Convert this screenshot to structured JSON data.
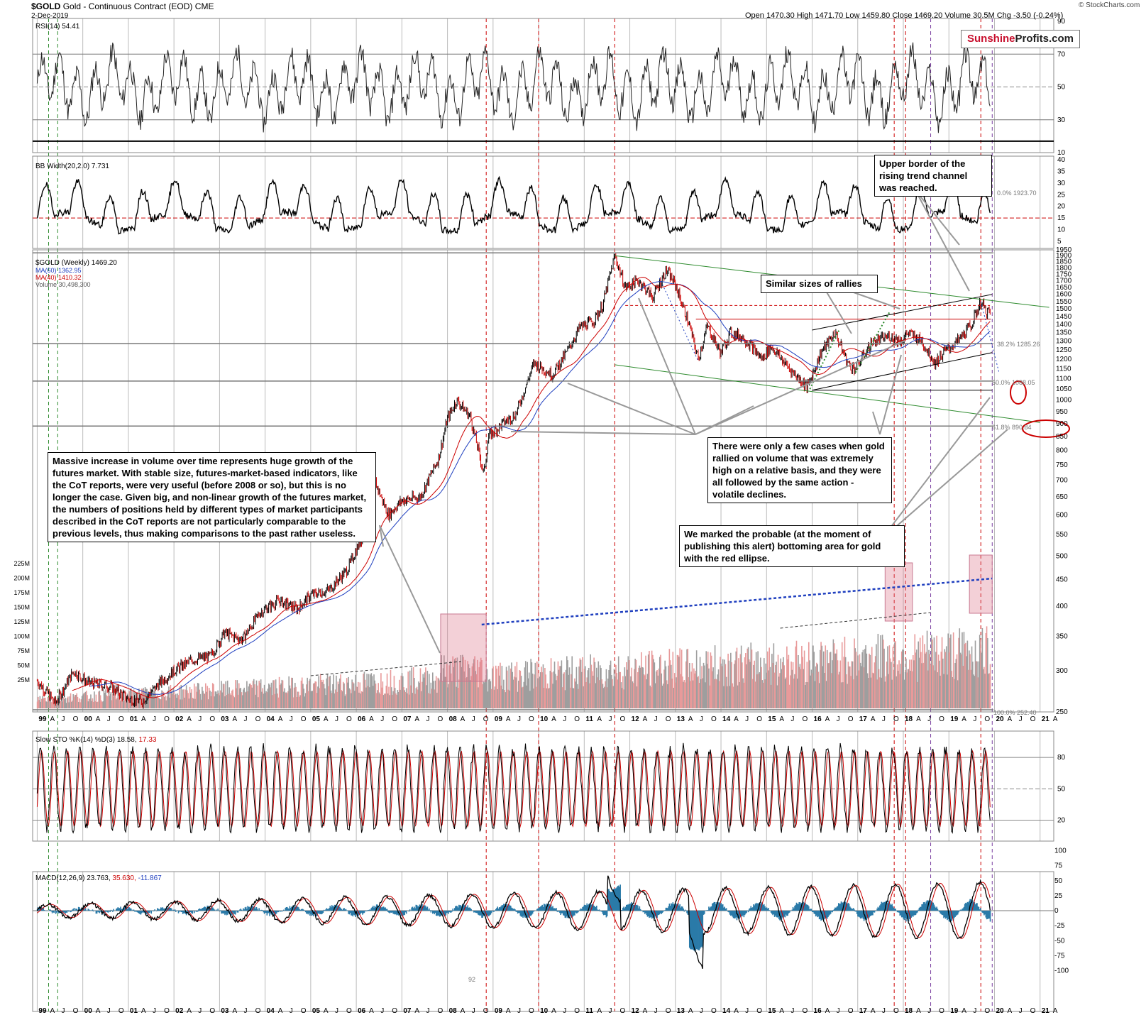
{
  "header": {
    "symbol": "$GOLD",
    "name": "Gold - Continuous Contract (EOD)",
    "exchange": "CME",
    "date": "2-Dec-2019",
    "ohlc": "Open 1470.30  High 1471.70  Low 1459.80  Close 1469.20  Volume 30.5M  Chg -3.50 (-0.24%)",
    "watermark": "© StockCharts.com"
  },
  "logo": {
    "part1": "Sunshine",
    "part2": "Profits.com"
  },
  "indicators": {
    "rsi": "RSI(14) 54.41",
    "bbw": "BB Width(20,2.0) 7.731",
    "price": "$GOLD (Weekly) 1469.20",
    "ma60": "MA(60) 1362.95",
    "ma40": "MA(40) 1410.32",
    "volume": "Volume 30,498,300",
    "sto": "Slow STO %K(14) %D(3) 18.58,",
    "sto_d": "17.33",
    "macd": "MACD(12,26,9) 23.763,",
    "macd_sig": "35.630,",
    "macd_hist": "-11.867"
  },
  "fib": {
    "f0": "0.0% 1923.70",
    "f382": "38.2% 1285.26",
    "f50": "50.0% 1088.05",
    "f618": "61.8% 890.84",
    "f100": "100.0% 252.40"
  },
  "notes": {
    "n1": "Upper border of the rising trend channel was reached.",
    "n2": "Similar sizes of rallies",
    "n3": "There were only a few cases when gold rallied on volume that was extremely high on a relative basis, and they were all followed by the same action - volatile declines.",
    "n4": "We marked the probable (at the moment of publishing this alert) bottoming area for gold with the red ellipse.",
    "n5": "Massive increase in volume over time represents huge growth of the futures market. With stable size, futures-market-based indicators, like the CoT reports, were very useful (before 2008 or so), but this is no longer the case. Given big, and non-linear growth of the futures market, the numbers of positions held by different types of market participants described in the CoT reports are not particularly comparable to the previous levels, thus making comparisons to the past rather useless."
  },
  "axis_labels": {
    "rsi": [
      "90",
      "70",
      "50",
      "30",
      "10"
    ],
    "bbw": [
      "40",
      "35",
      "30",
      "25",
      "20",
      "15",
      "10",
      "5"
    ],
    "price": [
      "1950",
      "1900",
      "1850",
      "1800",
      "1750",
      "1700",
      "1650",
      "1600",
      "1550",
      "1500",
      "1450",
      "1400",
      "1350",
      "1300",
      "1250",
      "1200",
      "1150",
      "1100",
      "1050",
      "1000",
      "950",
      "900",
      "850",
      "800",
      "750",
      "700",
      "650",
      "600",
      "550",
      "500",
      "450",
      "400",
      "350",
      "300",
      "250"
    ],
    "volume": [
      "225M",
      "200M",
      "175M",
      "150M",
      "125M",
      "100M",
      "75M",
      "50M",
      "25M"
    ],
    "sto": [
      "80",
      "50",
      "20"
    ],
    "macd": [
      "100",
      "75",
      "50",
      "25",
      "0",
      "-25",
      "-50",
      "-75",
      "-100"
    ],
    "macd_note": "92"
  },
  "colors": {
    "price_up": "#000000",
    "price_down": "#cc0000",
    "ma60": "#1f3fbf",
    "ma40": "#cc0000",
    "rsi_fill": "#4a7a4a",
    "vol_up": "#9e9e9e",
    "vol_down": "#e89a9a",
    "macd_hist": "#2a7aa8",
    "trend": "#2e8b2e"
  },
  "chart_data": {
    "type": "line",
    "title": "$GOLD Gold - Continuous Contract (EOD) CME",
    "x_ticks": [
      "99",
      "A",
      "J",
      "O",
      "00",
      "A",
      "J",
      "O",
      "01",
      "A",
      "J",
      "O",
      "02",
      "A",
      "J",
      "O",
      "03",
      "A",
      "J",
      "O",
      "04",
      "A",
      "J",
      "O",
      "05",
      "A",
      "J",
      "O",
      "06",
      "A",
      "J",
      "O",
      "07",
      "A",
      "J",
      "O",
      "08",
      "A",
      "J",
      "O",
      "09",
      "A",
      "J",
      "O",
      "10",
      "A",
      "J",
      "O",
      "11",
      "A",
      "J",
      "O",
      "12",
      "A",
      "J",
      "O",
      "13",
      "A",
      "J",
      "O",
      "14",
      "A",
      "J",
      "O",
      "15",
      "A",
      "J",
      "O",
      "16",
      "A",
      "J",
      "O",
      "17",
      "A",
      "J",
      "O",
      "18",
      "A",
      "J",
      "O",
      "19",
      "A",
      "J",
      "O",
      "20",
      "A",
      "J",
      "O",
      "21",
      "A"
    ],
    "series": [
      {
        "name": "$GOLD (Weekly)",
        "x": [
          1999.0,
          1999.4,
          1999.8,
          2000.1,
          2000.6,
          2001.0,
          2001.3,
          2001.7,
          2002.0,
          2002.4,
          2002.8,
          2003.1,
          2003.5,
          2003.9,
          2004.3,
          2004.7,
          2005.0,
          2005.4,
          2005.8,
          2006.2,
          2006.4,
          2006.7,
          2007.0,
          2007.4,
          2007.8,
          2008.0,
          2008.2,
          2008.5,
          2008.8,
          2008.9,
          2009.2,
          2009.5,
          2009.9,
          2010.3,
          2010.6,
          2010.9,
          2011.2,
          2011.4,
          2011.67,
          2011.9,
          2012.2,
          2012.5,
          2012.8,
          2013.0,
          2013.3,
          2013.5,
          2013.7,
          2014.0,
          2014.2,
          2014.5,
          2014.9,
          2015.1,
          2015.5,
          2015.9,
          2016.2,
          2016.5,
          2016.8,
          2016.95,
          2017.3,
          2017.7,
          2017.95,
          2018.1,
          2018.4,
          2018.7,
          2018.9,
          2019.2,
          2019.5,
          2019.7,
          2019.8,
          2019.92
        ],
        "y": [
          287,
          260,
          300,
          285,
          280,
          265,
          262,
          285,
          300,
          315,
          320,
          355,
          345,
          390,
          410,
          395,
          420,
          430,
          470,
          560,
          700,
          600,
          640,
          650,
          770,
          920,
          1000,
          930,
          720,
          850,
          900,
          940,
          1180,
          1120,
          1230,
          1380,
          1420,
          1520,
          1900,
          1650,
          1700,
          1580,
          1780,
          1670,
          1400,
          1200,
          1390,
          1230,
          1350,
          1320,
          1200,
          1270,
          1150,
          1060,
          1240,
          1350,
          1170,
          1150,
          1290,
          1330,
          1300,
          1350,
          1300,
          1180,
          1240,
          1300,
          1400,
          1550,
          1490,
          1469
        ]
      },
      {
        "name": "MA(60)",
        "values": [
          1362.95
        ]
      },
      {
        "name": "MA(40)",
        "values": [
          1410.32
        ]
      }
    ],
    "fib_levels": [
      {
        "label": "0.0%",
        "value": 1923.7
      },
      {
        "label": "38.2%",
        "value": 1285.26
      },
      {
        "label": "50.0%",
        "value": 1088.05
      },
      {
        "label": "61.8%",
        "value": 890.84
      },
      {
        "label": "100.0%",
        "value": 252.4
      }
    ],
    "ylim": [
      250,
      1950
    ],
    "y_scale": "log",
    "xlim": [
      1998.9,
      2021.3
    ],
    "grid": true
  }
}
